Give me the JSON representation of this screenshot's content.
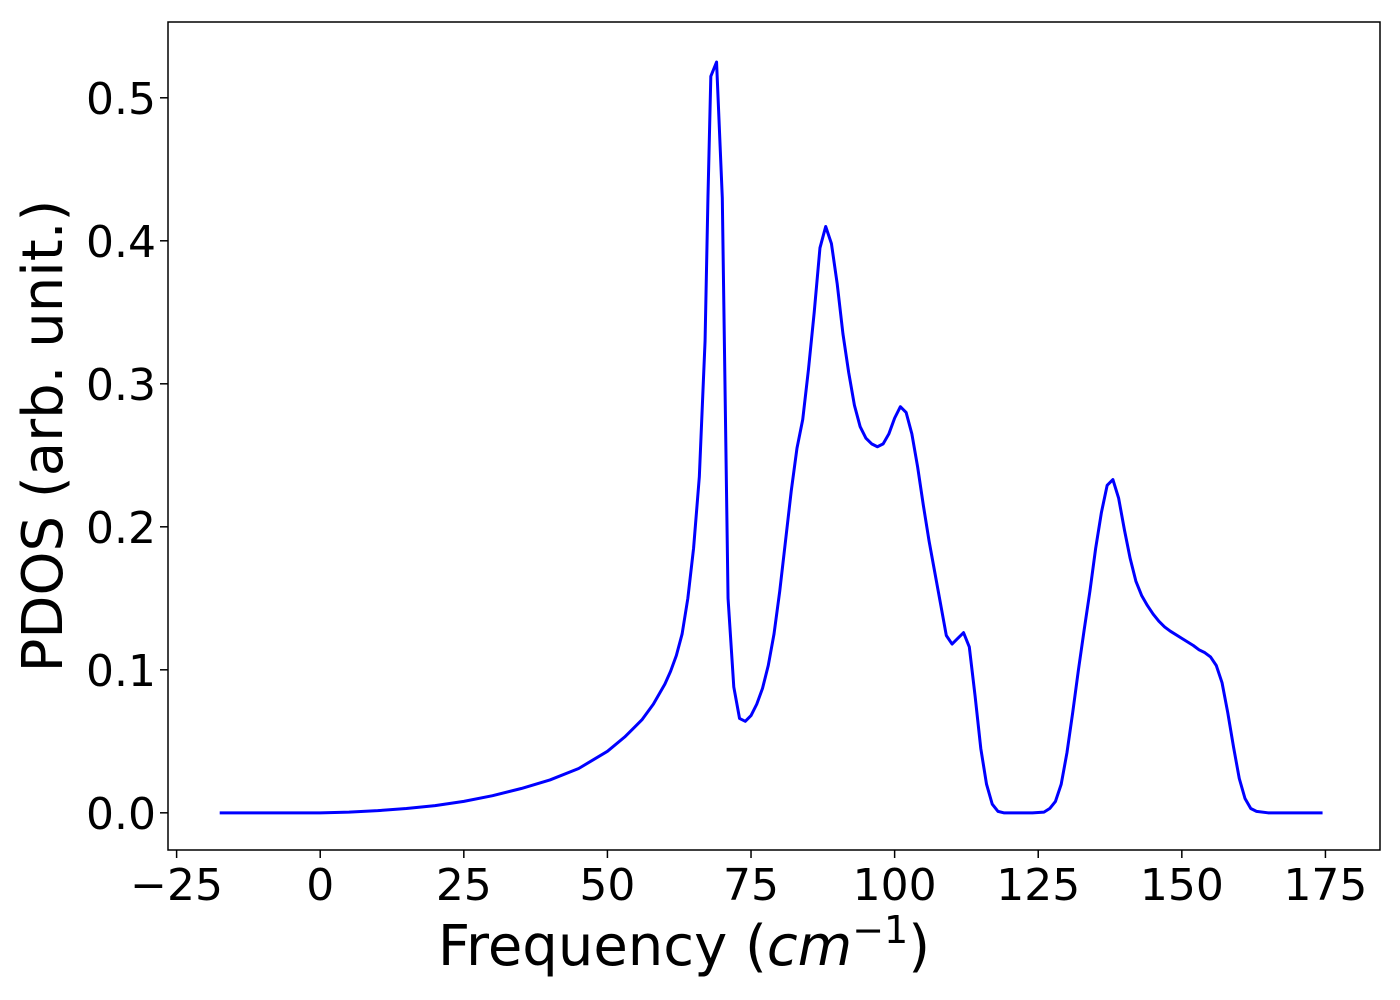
{
  "chart_data": {
    "type": "line",
    "xlabel": "Frequency (cm^{-1})",
    "xlabel_parts": {
      "prefix": "Frequency (",
      "math": "cm",
      "sup": "−1",
      "suffix": ")"
    },
    "ylabel": "PDOS (arb. unit.)",
    "xlim": [
      -26.5,
      184.5
    ],
    "ylim": [
      -0.026,
      0.553
    ],
    "x_ticks": [
      -25,
      0,
      25,
      50,
      75,
      100,
      125,
      150,
      175
    ],
    "x_tick_labels": [
      "−25",
      "0",
      "25",
      "50",
      "75",
      "100",
      "125",
      "150",
      "175"
    ],
    "y_ticks": [
      0.0,
      0.1,
      0.2,
      0.3,
      0.4,
      0.5
    ],
    "y_tick_labels": [
      "0.0",
      "0.1",
      "0.2",
      "0.3",
      "0.4",
      "0.5"
    ],
    "grid": false,
    "line_color": "#0000ff",
    "series": [
      {
        "x": [
          -17.5,
          -10,
          0,
          5,
          10,
          15,
          20,
          25,
          30,
          35,
          40,
          45,
          50,
          53,
          56,
          58,
          60,
          61,
          62,
          63,
          64,
          65,
          66,
          67,
          67.5,
          68,
          69,
          70,
          71,
          72,
          73,
          74,
          75,
          76,
          77,
          78,
          79,
          80,
          81,
          82,
          83,
          84,
          85,
          86,
          87,
          88,
          89,
          90,
          91,
          92,
          93,
          94,
          95,
          96,
          97,
          98,
          99,
          100,
          101,
          102,
          103,
          104,
          105,
          106,
          107,
          108,
          109,
          110,
          111,
          112,
          113,
          114,
          115,
          116,
          117,
          118,
          119,
          120,
          122,
          124,
          126,
          127,
          128,
          129,
          130,
          131,
          132,
          133,
          134,
          135,
          136,
          137,
          138,
          139,
          140,
          141,
          142,
          143,
          144,
          145,
          146,
          147,
          148,
          150,
          152,
          153,
          154,
          155,
          156,
          157,
          158,
          159,
          160,
          161,
          162,
          163,
          165,
          170,
          174.5
        ],
        "y": [
          0.0,
          0.0,
          0.0,
          0.0005,
          0.0015,
          0.003,
          0.005,
          0.008,
          0.012,
          0.017,
          0.023,
          0.031,
          0.043,
          0.053,
          0.065,
          0.076,
          0.09,
          0.099,
          0.11,
          0.125,
          0.15,
          0.185,
          0.235,
          0.33,
          0.43,
          0.515,
          0.525,
          0.43,
          0.15,
          0.088,
          0.066,
          0.064,
          0.068,
          0.076,
          0.087,
          0.103,
          0.125,
          0.155,
          0.19,
          0.225,
          0.255,
          0.275,
          0.31,
          0.35,
          0.395,
          0.41,
          0.398,
          0.37,
          0.335,
          0.308,
          0.285,
          0.27,
          0.262,
          0.258,
          0.256,
          0.258,
          0.265,
          0.276,
          0.284,
          0.28,
          0.265,
          0.242,
          0.215,
          0.19,
          0.168,
          0.146,
          0.124,
          0.118,
          0.122,
          0.126,
          0.116,
          0.082,
          0.045,
          0.02,
          0.006,
          0.001,
          0.0,
          0.0,
          0.0,
          0.0,
          0.0005,
          0.003,
          0.008,
          0.02,
          0.042,
          0.07,
          0.1,
          0.128,
          0.155,
          0.185,
          0.21,
          0.229,
          0.233,
          0.22,
          0.198,
          0.178,
          0.162,
          0.152,
          0.145,
          0.139,
          0.134,
          0.13,
          0.127,
          0.122,
          0.117,
          0.114,
          0.112,
          0.109,
          0.103,
          0.091,
          0.07,
          0.046,
          0.024,
          0.01,
          0.003,
          0.001,
          0.0,
          0.0,
          0.0
        ]
      }
    ]
  }
}
